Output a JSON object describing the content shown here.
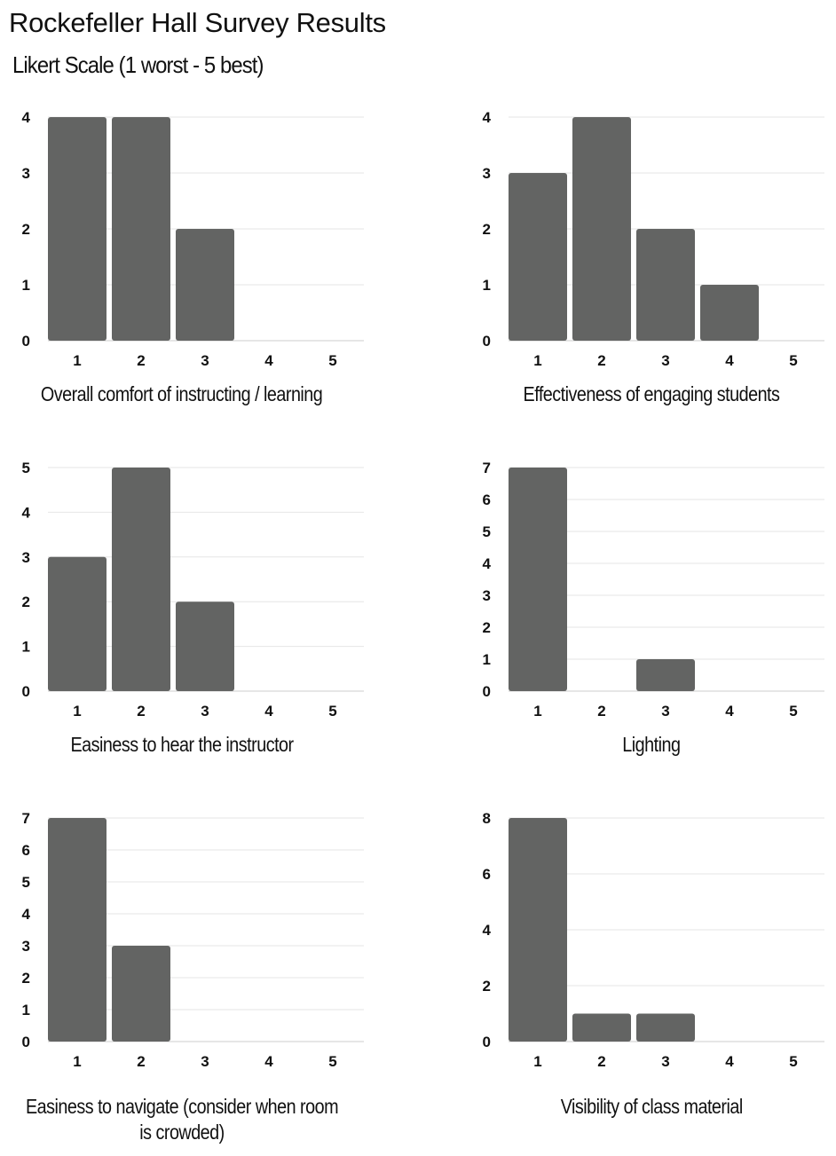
{
  "header": {
    "title": "Rockefeller Hall Survey Results",
    "subtitle": "Likert Scale (1 worst - 5 best)"
  },
  "colors": {
    "bar": "#636463",
    "grid": "#e6e6e6",
    "text": "#111111"
  },
  "chart_data": [
    {
      "type": "bar",
      "title": "Overall comfort of instructing / learning",
      "categories": [
        "1",
        "2",
        "3",
        "4",
        "5"
      ],
      "values": [
        4,
        4,
        2,
        0,
        0
      ],
      "ylim": [
        0,
        4
      ],
      "yticks": [
        "0",
        "1",
        "2",
        "3",
        "4"
      ],
      "ytick_values": [
        0,
        1,
        2,
        3,
        4
      ],
      "grid": true
    },
    {
      "type": "bar",
      "title": "Effectiveness of engaging students",
      "categories": [
        "1",
        "2",
        "3",
        "4",
        "5"
      ],
      "values": [
        3,
        4,
        2,
        1,
        0
      ],
      "ylim": [
        0,
        4
      ],
      "yticks": [
        "0",
        "1",
        "2",
        "3",
        "4"
      ],
      "ytick_values": [
        0,
        1,
        2,
        3,
        4
      ],
      "grid": true
    },
    {
      "type": "bar",
      "title": "Easiness to hear the instructor",
      "categories": [
        "1",
        "2",
        "3",
        "4",
        "5"
      ],
      "values": [
        3,
        5,
        2,
        0,
        0
      ],
      "ylim": [
        0,
        5
      ],
      "yticks": [
        "0",
        "1",
        "2",
        "3",
        "4",
        "5"
      ],
      "ytick_values": [
        0,
        1,
        2,
        3,
        4,
        5
      ],
      "grid": true
    },
    {
      "type": "bar",
      "title": "Lighting",
      "categories": [
        "1",
        "2",
        "3",
        "4",
        "5"
      ],
      "values": [
        7,
        0,
        1,
        0,
        0
      ],
      "ylim": [
        0,
        7
      ],
      "yticks": [
        "0",
        "1",
        "2",
        "3",
        "4",
        "5",
        "6",
        "7"
      ],
      "ytick_values": [
        0,
        1,
        2,
        3,
        4,
        5,
        6,
        7
      ],
      "grid": true
    },
    {
      "type": "bar",
      "title": "Easiness to navigate (consider when room is crowded)",
      "categories": [
        "1",
        "2",
        "3",
        "4",
        "5"
      ],
      "values": [
        7,
        3,
        0,
        0,
        0
      ],
      "ylim": [
        0,
        7
      ],
      "yticks": [
        "0",
        "1",
        "2",
        "3",
        "4",
        "5",
        "6",
        "7"
      ],
      "ytick_values": [
        0,
        1,
        2,
        3,
        4,
        5,
        6,
        7
      ],
      "grid": true
    },
    {
      "type": "bar",
      "title": "Visibility of class material",
      "categories": [
        "1",
        "2",
        "3",
        "4",
        "5"
      ],
      "values": [
        8,
        1,
        1,
        0,
        0
      ],
      "ylim": [
        0,
        8
      ],
      "yticks": [
        "0",
        "2",
        "4",
        "6",
        "8"
      ],
      "ytick_values": [
        0,
        2,
        4,
        6,
        8
      ],
      "grid": true
    }
  ]
}
